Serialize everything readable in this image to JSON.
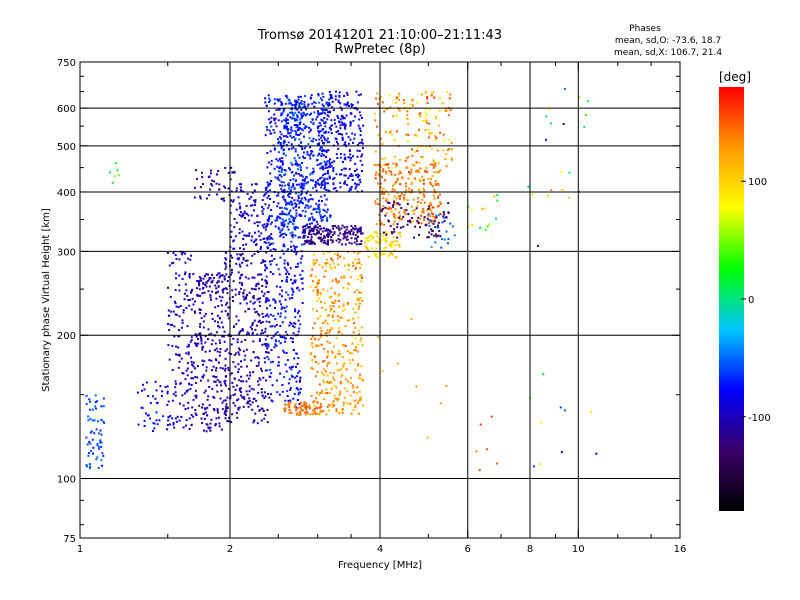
{
  "chart_data": {
    "type": "scatter",
    "title": "Tromsø 20141201 21:10:00–21:11:43",
    "subtitle": "RwPretec (8p)",
    "stats": {
      "heading": "Phases",
      "line1": "mean, sd,O: -73.6, 18.7",
      "line2": "mean, sd,X: 106.7, 21.4"
    },
    "xlabel": "Frequency [MHz]",
    "ylabel": "Stationary phase Virtual Height [km]",
    "x_scale": "log",
    "y_scale": "log",
    "xlim": [
      1,
      16
    ],
    "ylim": [
      75,
      750
    ],
    "x_ticks": [
      1,
      2,
      4,
      6,
      8,
      10,
      16
    ],
    "x_tick_labels": [
      "1",
      "2",
      "4",
      "6",
      "8",
      "10",
      "16"
    ],
    "x_minor_ticks": [
      1.5,
      2.5,
      3,
      3.5,
      5,
      7,
      9,
      12,
      14
    ],
    "y_ticks": [
      75,
      100,
      200,
      300,
      400,
      500,
      600,
      750
    ],
    "y_tick_labels": [
      "75",
      "100",
      "200",
      "300",
      "400",
      "500",
      "600",
      "750"
    ],
    "y_minor_ticks": [
      80,
      90,
      150,
      250,
      350,
      450,
      550,
      650,
      700
    ],
    "grid_x": [
      2,
      4,
      6,
      8,
      10
    ],
    "grid_y": [
      100,
      200,
      300,
      400,
      500,
      600
    ],
    "colorbar": {
      "label": "[deg]",
      "min": -180,
      "max": 180,
      "ticks": [
        100,
        0,
        -100
      ],
      "tick_labels": [
        "100",
        "0",
        "-100"
      ],
      "colormap": [
        "#000000",
        "#3a006a",
        "#0000ff",
        "#00c8ff",
        "#00ff00",
        "#ffff00",
        "#ff9900",
        "#ff0000"
      ]
    },
    "clusters": [
      {
        "f": [
          1.03,
          1.12
        ],
        "h": [
          105,
          150
        ],
        "phase": [
          -50,
          -70
        ],
        "n": 60
      },
      {
        "f": [
          1.14,
          1.22
        ],
        "h": [
          380,
          460
        ],
        "phase": [
          60,
          0
        ],
        "n": 6
      },
      {
        "f": [
          1.3,
          1.5
        ],
        "h": [
          125,
          160
        ],
        "phase": [
          -70,
          -90
        ],
        "n": 40
      },
      {
        "f": [
          1.5,
          1.68
        ],
        "h": [
          125,
          300
        ],
        "phase": [
          -80,
          -110
        ],
        "n": 150
      },
      {
        "f": [
          1.68,
          1.95
        ],
        "h": [
          125,
          270
        ],
        "phase": [
          -90,
          -120
        ],
        "n": 220
      },
      {
        "f": [
          1.7,
          2.05
        ],
        "h": [
          380,
          450
        ],
        "phase": [
          -100,
          -120
        ],
        "n": 50
      },
      {
        "f": [
          1.65,
          2.0
        ],
        "h": [
          245,
          270
        ],
        "phase": [
          -90,
          -120
        ],
        "n": 40
      },
      {
        "f": [
          1.95,
          2.4
        ],
        "h": [
          130,
          300
        ],
        "phase": [
          -90,
          -120
        ],
        "n": 350
      },
      {
        "f": [
          2.0,
          2.4
        ],
        "h": [
          300,
          420
        ],
        "phase": [
          -80,
          -110
        ],
        "n": 120
      },
      {
        "f": [
          2.35,
          2.8
        ],
        "h": [
          140,
          640
        ],
        "phase": [
          -60,
          -100
        ],
        "n": 520
      },
      {
        "f": [
          2.5,
          3.2
        ],
        "h": [
          320,
          640
        ],
        "phase": [
          -50,
          -90
        ],
        "n": 500
      },
      {
        "f": [
          2.8,
          3.7
        ],
        "h": [
          310,
          340
        ],
        "phase": [
          -110,
          -130
        ],
        "n": 180
      },
      {
        "f": [
          3.0,
          3.7
        ],
        "h": [
          400,
          650
        ],
        "phase": [
          -70,
          -100
        ],
        "n": 260
      },
      {
        "f": [
          2.55,
          3.05
        ],
        "h": [
          136,
          145
        ],
        "phase": [
          150,
          130
        ],
        "n": 70
      },
      {
        "f": [
          2.9,
          3.7
        ],
        "h": [
          136,
          300
        ],
        "phase": [
          100,
          150
        ],
        "n": 380
      },
      {
        "f": [
          3.7,
          4.4
        ],
        "h": [
          290,
          330
        ],
        "phase": [
          80,
          110
        ],
        "n": 80
      },
      {
        "f": [
          3.9,
          5.3
        ],
        "h": [
          340,
          460
        ],
        "phase": [
          120,
          160
        ],
        "n": 240
      },
      {
        "f": [
          4.0,
          5.5
        ],
        "h": [
          320,
          380
        ],
        "phase": [
          -120,
          -140
        ],
        "n": 80
      },
      {
        "f": [
          3.9,
          5.6
        ],
        "h": [
          450,
          650
        ],
        "phase": [
          80,
          160
        ],
        "n": 160
      },
      {
        "f": [
          5.0,
          5.7
        ],
        "h": [
          300,
          360
        ],
        "phase": [
          -40,
          -60
        ],
        "n": 20
      },
      {
        "f": [
          3.9,
          5.7
        ],
        "h": [
          110,
          230
        ],
        "phase": [
          100,
          160
        ],
        "n": 8
      },
      {
        "f": [
          6.0,
          6.9
        ],
        "h": [
          330,
          400
        ],
        "phase": [
          -20,
          140
        ],
        "n": 14
      },
      {
        "f": [
          6.2,
          6.9
        ],
        "h": [
          100,
          150
        ],
        "phase": [
          140,
          170
        ],
        "n": 6
      },
      {
        "f": [
          7.8,
          10.5
        ],
        "h": [
          300,
          660
        ],
        "phase": [
          -130,
          160
        ],
        "n": 20
      },
      {
        "f": [
          8.0,
          11.0
        ],
        "h": [
          105,
          170
        ],
        "phase": [
          100,
          -100
        ],
        "n": 10
      }
    ]
  }
}
